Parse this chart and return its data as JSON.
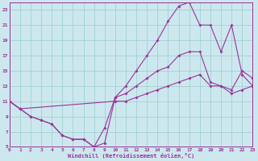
{
  "xlabel": "Windchill (Refroidissement éolien,°C)",
  "bg_color": "#cce8ee",
  "grid_color": "#99cccc",
  "line_color": "#993399",
  "xlim": [
    0,
    23
  ],
  "ylim": [
    5,
    24
  ],
  "xticks": [
    0,
    1,
    2,
    3,
    4,
    5,
    6,
    7,
    8,
    9,
    10,
    11,
    12,
    13,
    14,
    15,
    16,
    17,
    18,
    19,
    20,
    21,
    22,
    23
  ],
  "yticks": [
    5,
    7,
    9,
    11,
    13,
    15,
    17,
    19,
    21,
    23
  ],
  "line1_x": [
    0,
    1,
    2,
    3,
    4,
    5,
    6,
    7,
    8,
    9,
    10,
    11,
    12,
    13,
    14,
    15,
    16,
    17,
    18,
    19,
    20,
    21,
    22,
    23
  ],
  "line1_y": [
    11,
    10,
    9,
    8.5,
    8,
    6.5,
    6,
    6,
    5,
    5.5,
    11.5,
    13,
    15,
    17,
    19,
    21.5,
    23.5,
    24,
    21,
    21,
    17.5,
    21,
    14.5,
    13
  ],
  "line2_x": [
    0,
    1,
    2,
    3,
    4,
    5,
    6,
    7,
    8,
    9,
    10,
    11,
    12,
    13,
    14,
    15,
    16,
    17,
    18,
    19,
    20,
    21,
    22,
    23
  ],
  "line2_y": [
    11,
    10,
    9,
    8.5,
    8,
    6.5,
    6,
    6,
    5,
    7.5,
    11.5,
    12,
    13,
    14,
    15,
    15.5,
    17,
    17.5,
    17.5,
    13.5,
    13,
    12.5,
    15,
    14
  ],
  "line3_x": [
    0,
    1,
    10,
    11,
    12,
    13,
    14,
    15,
    16,
    17,
    18,
    19,
    20,
    21,
    22,
    23
  ],
  "line3_y": [
    11,
    10,
    11,
    11,
    11.5,
    12,
    12.5,
    13,
    13.5,
    14,
    14.5,
    13,
    13,
    12,
    12.5,
    13
  ]
}
